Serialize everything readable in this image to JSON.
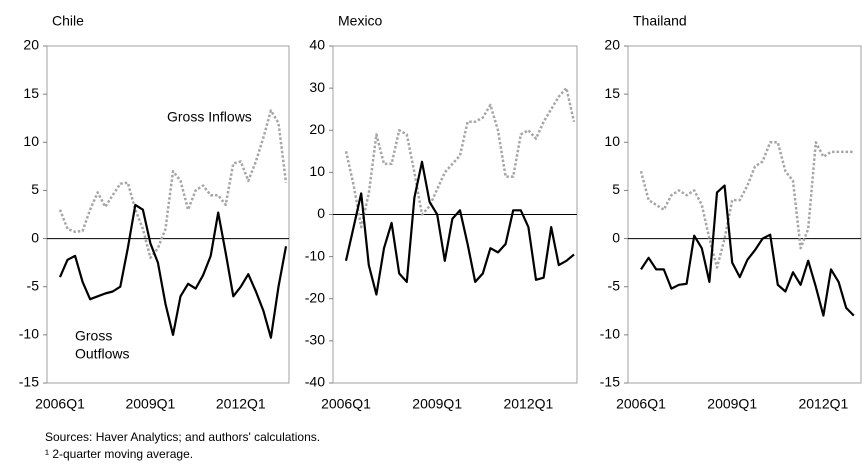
{
  "chart_data": [
    {
      "type": "line",
      "title": "Chile",
      "categories": [
        "2006Q1",
        null,
        null,
        null,
        null,
        null,
        null,
        null,
        null,
        null,
        null,
        null,
        "2009Q1",
        null,
        null,
        null,
        null,
        null,
        null,
        null,
        null,
        null,
        null,
        null,
        "2012Q1",
        null,
        null,
        null,
        null,
        null,
        null
      ],
      "series": [
        {
          "color": "#a6a6a6",
          "line_style": "dotted",
          "values": [
            3,
            1,
            0.7,
            0.8,
            3,
            4.8,
            3.3,
            4.5,
            5.7,
            5.8,
            3,
            1,
            -2,
            -1,
            1,
            7,
            6,
            3,
            5,
            5.5,
            4.5,
            4.5,
            3.5,
            7.8,
            8,
            6,
            8,
            10.5,
            13.3,
            12,
            5.8
          ]
        },
        {
          "color": "#000000",
          "line_style": "solid",
          "values": [
            -4,
            -2.2,
            -1.8,
            -4.5,
            -6.3,
            -6,
            -5.7,
            -5.5,
            -5,
            -1,
            3.5,
            3,
            -0.5,
            -2.5,
            -6.8,
            -10,
            -6,
            -4.7,
            -5.2,
            -3.8,
            -1.8,
            2.7,
            -1.5,
            -6,
            -5,
            -3.7,
            -5.5,
            -7.5,
            -10.3,
            -5,
            -0.8
          ]
        }
      ],
      "ylim": [
        -15,
        20
      ],
      "yticks": [
        -15,
        -10,
        -5,
        0,
        5,
        10,
        15,
        20
      ],
      "annotations": [
        "Gross Inflows",
        "Gross",
        "Outflows"
      ]
    },
    {
      "type": "line",
      "title": "Mexico",
      "categories": [
        "2006Q1",
        null,
        null,
        null,
        null,
        null,
        null,
        null,
        null,
        null,
        null,
        null,
        "2009Q1",
        null,
        null,
        null,
        null,
        null,
        null,
        null,
        null,
        null,
        null,
        null,
        "2012Q1",
        null,
        null,
        null,
        null,
        null,
        null
      ],
      "series": [
        {
          "color": "#a6a6a6",
          "line_style": "dotted",
          "values": [
            15,
            7,
            -3,
            5,
            19,
            12,
            12,
            20,
            19,
            10,
            0,
            2,
            6,
            10,
            12,
            14,
            22,
            22,
            23,
            26,
            20,
            9,
            9,
            19,
            20,
            18,
            22,
            25,
            28,
            30,
            22
          ]
        },
        {
          "color": "#000000",
          "line_style": "solid",
          "values": [
            -11,
            -3,
            5,
            -12,
            -19,
            -8,
            -2,
            -14,
            -16,
            4,
            12.5,
            3,
            0,
            -11,
            -1,
            1,
            -7,
            -16,
            -14,
            -8,
            -9,
            -7,
            1,
            1,
            -3,
            -15.5,
            -15,
            -3,
            -12,
            -11,
            -9.5
          ]
        }
      ],
      "ylim": [
        -40,
        40
      ],
      "yticks": [
        -40,
        -30,
        -20,
        -10,
        0,
        10,
        20,
        30,
        40
      ]
    },
    {
      "type": "line",
      "title": "Thailand",
      "categories": [
        "2006Q1",
        null,
        null,
        null,
        null,
        null,
        null,
        null,
        null,
        null,
        null,
        null,
        "2009Q1",
        null,
        null,
        null,
        null,
        null,
        null,
        null,
        null,
        null,
        null,
        null,
        "2012Q1",
        null,
        null,
        null,
        null
      ],
      "series": [
        {
          "color": "#a6a6a6",
          "line_style": "dotted",
          "values": [
            7,
            4,
            3.5,
            3,
            4.5,
            5,
            4.5,
            5,
            3.5,
            0,
            -3,
            0,
            4,
            4,
            5.5,
            7.5,
            8,
            10,
            10,
            7,
            6,
            -1,
            1,
            10,
            8.5,
            9,
            9,
            9,
            9
          ]
        },
        {
          "color": "#000000",
          "line_style": "solid",
          "values": [
            -3.2,
            -2,
            -3.2,
            -3.2,
            -5.2,
            -4.8,
            -4.7,
            0.3,
            -1,
            -4.5,
            4.8,
            5.5,
            -2.5,
            -4,
            -2.2,
            -1.2,
            0,
            0.4,
            -4.8,
            -5.5,
            -3.5,
            -4.8,
            -2.3,
            -5,
            -8,
            -3.2,
            -4.5,
            -7.2,
            -8
          ]
        }
      ],
      "ylim": [
        -15,
        20
      ],
      "yticks": [
        -15,
        -10,
        -5,
        0,
        5,
        10,
        15,
        20
      ]
    }
  ],
  "notes": [
    "Sources: Haver Analytics; and authors' calculations.",
    "¹ 2-quarter moving average."
  ]
}
